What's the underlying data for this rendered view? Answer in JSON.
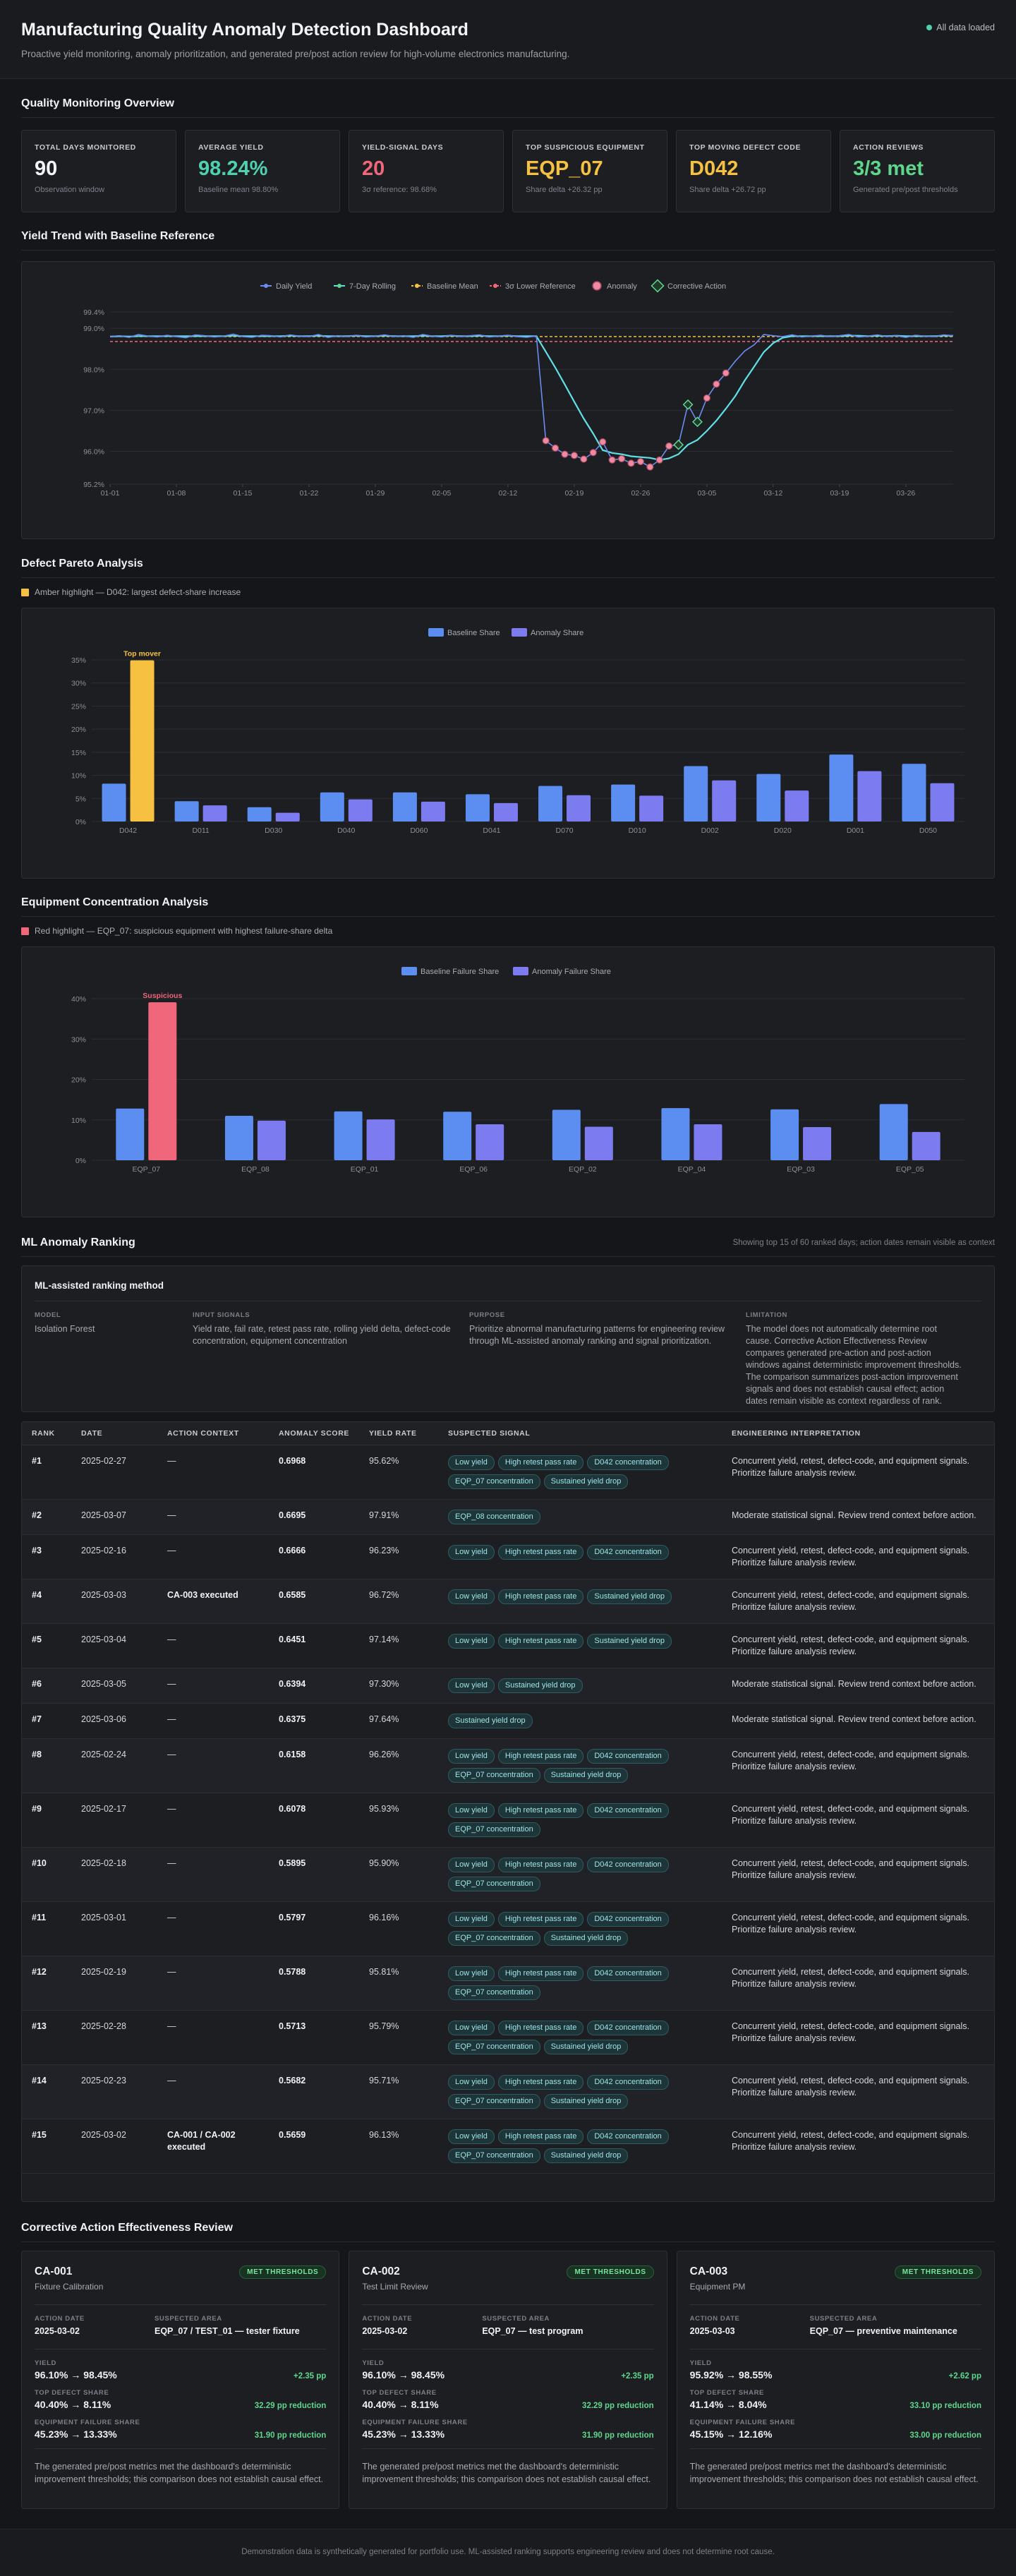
{
  "header": {
    "title": "Manufacturing Quality Anomaly Detection Dashboard",
    "subtitle": "Proactive yield monitoring, anomaly prioritization, and generated pre/post action review for high-volume electronics manufacturing.",
    "status": "All data loaded"
  },
  "sections": {
    "overview": "Quality Monitoring Overview",
    "yield_trend": "Yield Trend with Baseline Reference",
    "pareto": "Defect Pareto Analysis",
    "equipment": "Equipment Concentration Analysis",
    "ranking": "ML Anomaly Ranking",
    "ranking_note": "Showing top 15 of 60 ranked days; action dates remain visible as context",
    "corrective": "Corrective Action Effectiveness Review"
  },
  "kpis": [
    {
      "label": "Total Days Monitored",
      "value": "90",
      "note": "Observation window",
      "color": "#f3f4f6"
    },
    {
      "label": "Average Yield",
      "value": "98.24%",
      "note": "Baseline mean 98.80%",
      "color": "#4fd1b0"
    },
    {
      "label": "Yield-Signal Days",
      "value": "20",
      "note": "3σ reference: 98.68%",
      "color": "#f0677b"
    },
    {
      "label": "Top Suspicious Equipment",
      "value": "EQP_07",
      "note": "Share delta +26.32 pp",
      "color": "#f6c141"
    },
    {
      "label": "Top Moving Defect Code",
      "value": "D042",
      "note": "Share delta +26.72 pp",
      "color": "#f6c141"
    },
    {
      "label": "Action Reviews",
      "value": "3/3 met",
      "note": "Generated pre/post thresholds",
      "color": "#5fd68c"
    }
  ],
  "yield_chart": {
    "legend": [
      "Daily Yield",
      "7-Day Rolling",
      "Baseline Mean",
      "3σ Lower Reference",
      "Anomaly",
      "Corrective Action"
    ],
    "colors": {
      "daily": "#6b8cf2",
      "rolling": "#5fe0e6",
      "baseline": "#f6c141",
      "lower": "#f0677b",
      "anomaly": "#f08aa0",
      "action": "#5fd68c"
    }
  },
  "pareto": {
    "highlight_note": "Amber highlight — D042: largest defect-share increase",
    "top_label": "Top mover",
    "legend": [
      "Baseline Share",
      "Anomaly Share"
    ]
  },
  "equipment": {
    "highlight_note": "Red highlight — EQP_07: suspicious equipment with highest failure-share delta",
    "top_label": "Suspicious",
    "legend": [
      "Baseline Failure Share",
      "Anomaly Failure Share"
    ]
  },
  "chart_data": [
    {
      "type": "line",
      "title": "Yield Trend with Baseline Reference",
      "ylim": [
        95.2,
        99.4
      ],
      "y_ticks": [
        "95.2%",
        "96.0%",
        "97.0%",
        "98.0%",
        "99.0%",
        "99.4%"
      ],
      "y_tick_values": [
        95.2,
        96.0,
        97.0,
        98.0,
        99.0,
        99.4
      ],
      "x_ticks": [
        "01-01",
        "01-08",
        "01-15",
        "01-22",
        "01-29",
        "02-05",
        "02-12",
        "02-19",
        "02-26",
        "03-05",
        "03-12",
        "03-19",
        "03-26"
      ],
      "baseline_mean": 98.8,
      "lower_reference": 98.68,
      "daily_yield": [
        98.8,
        98.82,
        98.78,
        98.85,
        98.81,
        98.79,
        98.83,
        98.8,
        98.77,
        98.84,
        98.82,
        98.79,
        98.81,
        98.86,
        98.8,
        98.78,
        98.83,
        98.82,
        98.79,
        98.84,
        98.81,
        98.8,
        98.85,
        98.78,
        98.82,
        98.8,
        98.83,
        98.79,
        98.81,
        98.84,
        98.8,
        98.82,
        98.78,
        98.85,
        98.81,
        98.79,
        98.83,
        98.8,
        98.82,
        98.84,
        98.79,
        98.81,
        98.83,
        98.8,
        98.78,
        98.82,
        96.26,
        96.08,
        95.93,
        95.9,
        95.81,
        95.97,
        96.23,
        95.79,
        95.82,
        95.71,
        95.75,
        95.62,
        95.79,
        96.13,
        96.16,
        97.14,
        96.72,
        97.3,
        97.64,
        97.91,
        98.2,
        98.45,
        98.6,
        98.85,
        98.82,
        98.8,
        98.84,
        98.79,
        98.81,
        98.83,
        98.8,
        98.82,
        98.85,
        98.79,
        98.81,
        98.84,
        98.8,
        98.82,
        98.78,
        98.83,
        98.81,
        98.8,
        98.84,
        98.82
      ],
      "rolling": [
        98.8,
        98.81,
        98.8,
        98.81,
        98.81,
        98.81,
        98.81,
        98.81,
        98.81,
        98.81,
        98.81,
        98.81,
        98.81,
        98.82,
        98.81,
        98.81,
        98.81,
        98.81,
        98.81,
        98.82,
        98.81,
        98.81,
        98.82,
        98.81,
        98.81,
        98.81,
        98.82,
        98.81,
        98.81,
        98.82,
        98.81,
        98.81,
        98.81,
        98.82,
        98.81,
        98.81,
        98.82,
        98.81,
        98.81,
        98.82,
        98.81,
        98.81,
        98.82,
        98.81,
        98.81,
        98.81,
        98.43,
        98.04,
        97.63,
        97.21,
        96.8,
        96.43,
        96.03,
        95.96,
        95.93,
        95.88,
        95.86,
        95.84,
        95.79,
        95.83,
        95.93,
        96.16,
        96.28,
        96.5,
        96.75,
        97.04,
        97.35,
        97.73,
        98.07,
        98.42,
        98.64,
        98.77,
        98.81,
        98.81,
        98.81,
        98.81,
        98.81,
        98.81,
        98.82,
        98.82,
        98.81,
        98.82,
        98.81,
        98.82,
        98.81,
        98.81,
        98.81,
        98.81,
        98.82,
        98.82
      ],
      "anomaly_days": [
        46,
        47,
        48,
        49,
        50,
        51,
        52,
        53,
        54,
        55,
        56,
        57,
        58,
        59,
        60,
        61,
        62,
        63,
        64,
        65
      ],
      "action_days": [
        60,
        61,
        62
      ]
    },
    {
      "type": "bar",
      "title": "Defect Pareto Analysis",
      "categories": [
        "D042",
        "D011",
        "D030",
        "D040",
        "D060",
        "D041",
        "D070",
        "D010",
        "D002",
        "D020",
        "D001",
        "D050"
      ],
      "ylim": [
        0,
        35
      ],
      "y_ticks": [
        "0%",
        "5%",
        "10%",
        "15%",
        "20%",
        "25%",
        "30%",
        "35%"
      ],
      "series": [
        {
          "name": "Baseline Share",
          "values": [
            8.2,
            4.4,
            3.1,
            6.3,
            6.3,
            5.9,
            7.7,
            8.0,
            12.0,
            10.3,
            14.5,
            12.5
          ]
        },
        {
          "name": "Anomaly Share",
          "values": [
            34.9,
            3.5,
            1.9,
            4.8,
            4.3,
            4.0,
            5.7,
            5.6,
            8.9,
            6.7,
            10.9,
            8.3
          ]
        }
      ]
    },
    {
      "type": "bar",
      "title": "Equipment Concentration Analysis",
      "categories": [
        "EQP_07",
        "EQP_08",
        "EQP_01",
        "EQP_06",
        "EQP_02",
        "EQP_04",
        "EQP_03",
        "EQP_05"
      ],
      "ylim": [
        0,
        40
      ],
      "y_ticks": [
        "0%",
        "10%",
        "20%",
        "30%",
        "40%"
      ],
      "series": [
        {
          "name": "Baseline Failure Share",
          "values": [
            12.8,
            11.0,
            12.1,
            12.0,
            12.5,
            12.9,
            12.6,
            13.9
          ]
        },
        {
          "name": "Anomaly Failure Share",
          "values": [
            39.1,
            9.8,
            10.1,
            8.9,
            8.3,
            8.9,
            8.2,
            7.0
          ]
        }
      ]
    }
  ],
  "method": {
    "title": "ML-assisted ranking method",
    "cols": [
      {
        "label": "Model",
        "value": "Isolation Forest"
      },
      {
        "label": "Input Signals",
        "value": "Yield rate, fail rate, retest pass rate, rolling yield delta, defect-code concentration, equipment concentration"
      },
      {
        "label": "Purpose",
        "value": "Prioritize abnormal manufacturing patterns for engineering review through ML-assisted anomaly ranking and signal prioritization."
      },
      {
        "label": "Limitation",
        "value": "The model does not automatically determine root cause. Corrective Action Effectiveness Review compares generated pre-action and post-action windows against deterministic improvement thresholds. The comparison summarizes post-action improvement signals and does not establish causal effect; action dates remain visible as context regardless of rank."
      }
    ]
  },
  "ranking_table": {
    "headers": [
      "Rank",
      "Date",
      "Action Context",
      "Anomaly Score",
      "Yield Rate",
      "Suspected Signal",
      "Engineering Interpretation"
    ],
    "rows": [
      {
        "rank": "#1",
        "date": "2025-02-27",
        "ctx": "—",
        "score": "0.6968",
        "yield": "95.62%",
        "signals": [
          "Low yield",
          "High retest pass rate",
          "D042 concentration",
          "EQP_07 concentration",
          "Sustained yield drop"
        ],
        "interp": "Concurrent yield, retest, defect-code, and equipment signals. Prioritize failure analysis review."
      },
      {
        "rank": "#2",
        "date": "2025-03-07",
        "ctx": "—",
        "score": "0.6695",
        "yield": "97.91%",
        "signals": [
          "EQP_08 concentration"
        ],
        "interp": "Moderate statistical signal. Review trend context before action."
      },
      {
        "rank": "#3",
        "date": "2025-02-16",
        "ctx": "—",
        "score": "0.6666",
        "yield": "96.23%",
        "signals": [
          "Low yield",
          "High retest pass rate",
          "D042 concentration"
        ],
        "interp": "Concurrent yield, retest, defect-code, and equipment signals. Prioritize failure analysis review."
      },
      {
        "rank": "#4",
        "date": "2025-03-03",
        "ctx": "CA-003 executed",
        "score": "0.6585",
        "yield": "96.72%",
        "signals": [
          "Low yield",
          "High retest pass rate",
          "Sustained yield drop"
        ],
        "interp": "Concurrent yield, retest, defect-code, and equipment signals. Prioritize failure analysis review."
      },
      {
        "rank": "#5",
        "date": "2025-03-04",
        "ctx": "—",
        "score": "0.6451",
        "yield": "97.14%",
        "signals": [
          "Low yield",
          "High retest pass rate",
          "Sustained yield drop"
        ],
        "interp": "Concurrent yield, retest, defect-code, and equipment signals. Prioritize failure analysis review."
      },
      {
        "rank": "#6",
        "date": "2025-03-05",
        "ctx": "—",
        "score": "0.6394",
        "yield": "97.30%",
        "signals": [
          "Low yield",
          "Sustained yield drop"
        ],
        "interp": "Moderate statistical signal. Review trend context before action."
      },
      {
        "rank": "#7",
        "date": "2025-03-06",
        "ctx": "—",
        "score": "0.6375",
        "yield": "97.64%",
        "signals": [
          "Sustained yield drop"
        ],
        "interp": "Moderate statistical signal. Review trend context before action."
      },
      {
        "rank": "#8",
        "date": "2025-02-24",
        "ctx": "—",
        "score": "0.6158",
        "yield": "96.26%",
        "signals": [
          "Low yield",
          "High retest pass rate",
          "D042 concentration",
          "EQP_07 concentration",
          "Sustained yield drop"
        ],
        "interp": "Concurrent yield, retest, defect-code, and equipment signals. Prioritize failure analysis review."
      },
      {
        "rank": "#9",
        "date": "2025-02-17",
        "ctx": "—",
        "score": "0.6078",
        "yield": "95.93%",
        "signals": [
          "Low yield",
          "High retest pass rate",
          "D042 concentration",
          "EQP_07 concentration"
        ],
        "interp": "Concurrent yield, retest, defect-code, and equipment signals. Prioritize failure analysis review."
      },
      {
        "rank": "#10",
        "date": "2025-02-18",
        "ctx": "—",
        "score": "0.5895",
        "yield": "95.90%",
        "signals": [
          "Low yield",
          "High retest pass rate",
          "D042 concentration",
          "EQP_07 concentration"
        ],
        "interp": "Concurrent yield, retest, defect-code, and equipment signals. Prioritize failure analysis review."
      },
      {
        "rank": "#11",
        "date": "2025-03-01",
        "ctx": "—",
        "score": "0.5797",
        "yield": "96.16%",
        "signals": [
          "Low yield",
          "High retest pass rate",
          "D042 concentration",
          "EQP_07 concentration",
          "Sustained yield drop"
        ],
        "interp": "Concurrent yield, retest, defect-code, and equipment signals. Prioritize failure analysis review."
      },
      {
        "rank": "#12",
        "date": "2025-02-19",
        "ctx": "—",
        "score": "0.5788",
        "yield": "95.81%",
        "signals": [
          "Low yield",
          "High retest pass rate",
          "D042 concentration",
          "EQP_07 concentration"
        ],
        "interp": "Concurrent yield, retest, defect-code, and equipment signals. Prioritize failure analysis review."
      },
      {
        "rank": "#13",
        "date": "2025-02-28",
        "ctx": "—",
        "score": "0.5713",
        "yield": "95.79%",
        "signals": [
          "Low yield",
          "High retest pass rate",
          "D042 concentration",
          "EQP_07 concentration",
          "Sustained yield drop"
        ],
        "interp": "Concurrent yield, retest, defect-code, and equipment signals. Prioritize failure analysis review."
      },
      {
        "rank": "#14",
        "date": "2025-02-23",
        "ctx": "—",
        "score": "0.5682",
        "yield": "95.71%",
        "signals": [
          "Low yield",
          "High retest pass rate",
          "D042 concentration",
          "EQP_07 concentration",
          "Sustained yield drop"
        ],
        "interp": "Concurrent yield, retest, defect-code, and equipment signals. Prioritize failure analysis review."
      },
      {
        "rank": "#15",
        "date": "2025-03-02",
        "ctx": "CA-001 / CA-002 executed",
        "score": "0.5659",
        "yield": "96.13%",
        "signals": [
          "Low yield",
          "High retest pass rate",
          "D042 concentration",
          "EQP_07 concentration",
          "Sustained yield drop"
        ],
        "interp": "Concurrent yield, retest, defect-code, and equipment signals. Prioritize failure analysis review."
      }
    ]
  },
  "corrective_actions": [
    {
      "id": "CA-001",
      "type": "Fixture Calibration",
      "badge": "MET THRESHOLDS",
      "date_label": "Action Date",
      "date": "2025-03-02",
      "area_label": "Suspected Area",
      "area": "EQP_07 / TEST_01 — tester fixture",
      "yield_label": "Yield",
      "yield": "96.10% → 98.45%",
      "yield_delta": "+2.35 pp",
      "defect_label": "Top Defect Share",
      "defect": "40.40% → 8.11%",
      "defect_delta": "32.29 pp reduction",
      "equip_label": "Equipment Failure Share",
      "equip": "45.23% → 13.33%",
      "equip_delta": "31.90 pp reduction",
      "conclusion": "The generated pre/post metrics met the dashboard's deterministic improvement thresholds; this comparison does not establish causal effect."
    },
    {
      "id": "CA-002",
      "type": "Test Limit Review",
      "badge": "MET THRESHOLDS",
      "date_label": "Action Date",
      "date": "2025-03-02",
      "area_label": "Suspected Area",
      "area": "EQP_07 — test program",
      "yield_label": "Yield",
      "yield": "96.10% → 98.45%",
      "yield_delta": "+2.35 pp",
      "defect_label": "Top Defect Share",
      "defect": "40.40% → 8.11%",
      "defect_delta": "32.29 pp reduction",
      "equip_label": "Equipment Failure Share",
      "equip": "45.23% → 13.33%",
      "equip_delta": "31.90 pp reduction",
      "conclusion": "The generated pre/post metrics met the dashboard's deterministic improvement thresholds; this comparison does not establish causal effect."
    },
    {
      "id": "CA-003",
      "type": "Equipment PM",
      "badge": "MET THRESHOLDS",
      "date_label": "Action Date",
      "date": "2025-03-03",
      "area_label": "Suspected Area",
      "area": "EQP_07 — preventive maintenance",
      "yield_label": "Yield",
      "yield": "95.92% → 98.55%",
      "yield_delta": "+2.62 pp",
      "defect_label": "Top Defect Share",
      "defect": "41.14% → 8.04%",
      "defect_delta": "33.10 pp reduction",
      "equip_label": "Equipment Failure Share",
      "equip": "45.15% → 12.16%",
      "equip_delta": "33.00 pp reduction",
      "conclusion": "The generated pre/post metrics met the dashboard's deterministic improvement thresholds; this comparison does not establish causal effect."
    }
  ],
  "footer": "Demonstration data is synthetically generated for portfolio use. ML-assisted ranking supports engineering review and does not determine root cause."
}
